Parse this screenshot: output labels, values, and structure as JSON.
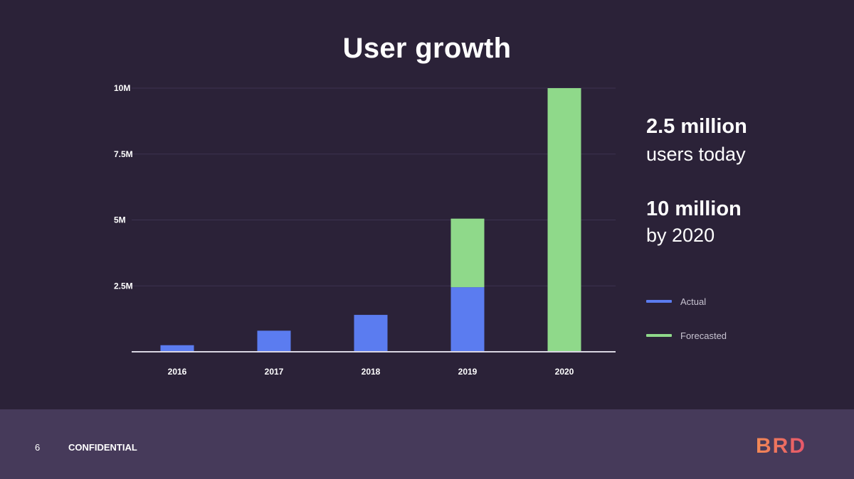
{
  "title": "User growth",
  "chart_data": {
    "type": "bar",
    "stacked": true,
    "categories": [
      "2016",
      "2017",
      "2018",
      "2019",
      "2020"
    ],
    "series": [
      {
        "name": "Actual",
        "color": "#5b7cf0",
        "values": [
          0.25,
          0.8,
          1.4,
          2.45,
          0
        ]
      },
      {
        "name": "Forecasted",
        "color": "#8fd98a",
        "values": [
          0,
          0,
          0,
          2.6,
          10.0
        ]
      }
    ],
    "y_ticks": [
      2.5,
      5,
      7.5,
      10
    ],
    "y_tick_labels": [
      "2.5M",
      "5M",
      "7.5M",
      "10M"
    ],
    "ylim": [
      0,
      10
    ],
    "grid": true,
    "legend_position": "right"
  },
  "stats": [
    {
      "big": "2.5 million",
      "small": "users today"
    },
    {
      "big": "10 million",
      "small": "by 2020"
    }
  ],
  "legend": [
    {
      "label": "Actual",
      "color": "#5b7cf0"
    },
    {
      "label": "Forecasted",
      "color": "#8fd98a"
    }
  ],
  "footer": {
    "page_number": "6",
    "confidential": "CONFIDENTIAL",
    "logo": "BRD"
  }
}
